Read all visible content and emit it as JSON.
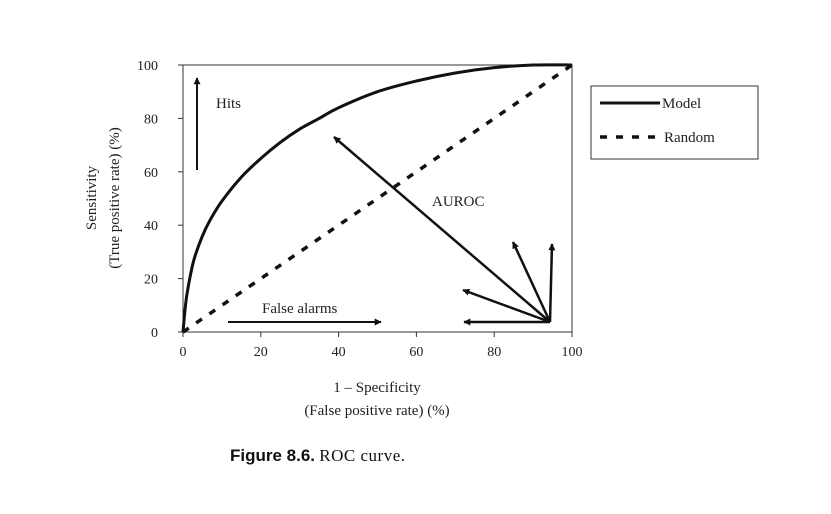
{
  "caption": {
    "figure_label": "Figure 8.6.",
    "text": "ROC curve."
  },
  "annotations": {
    "hits": "Hits",
    "false_alarms": "False alarms",
    "auroc": "AUROC"
  },
  "chart_data": {
    "type": "line",
    "xlabel_line1": "1 – Specificity",
    "xlabel_line2": "(False positive rate) (%)",
    "ylabel_line1": "Sensitivity",
    "ylabel_line2": "(True positive rate) (%)",
    "xlim": [
      0,
      100
    ],
    "ylim": [
      0,
      100
    ],
    "xticks": [
      0,
      20,
      40,
      60,
      80,
      100
    ],
    "yticks": [
      0,
      20,
      40,
      60,
      80,
      100
    ],
    "grid": false,
    "legend_position": "right",
    "series": [
      {
        "name": "Model",
        "style": "solid",
        "x": [
          0,
          0.5,
          1,
          2,
          3,
          5,
          7,
          10,
          15,
          20,
          25,
          30,
          35,
          40,
          50,
          60,
          70,
          80,
          90,
          100
        ],
        "y": [
          0,
          8,
          14,
          22,
          28,
          36,
          42,
          49,
          58,
          65,
          71,
          76,
          80,
          84,
          90,
          94,
          97,
          99,
          100,
          100
        ]
      },
      {
        "name": "Random",
        "style": "dashed",
        "x": [
          0,
          100
        ],
        "y": [
          0,
          100
        ]
      }
    ]
  }
}
